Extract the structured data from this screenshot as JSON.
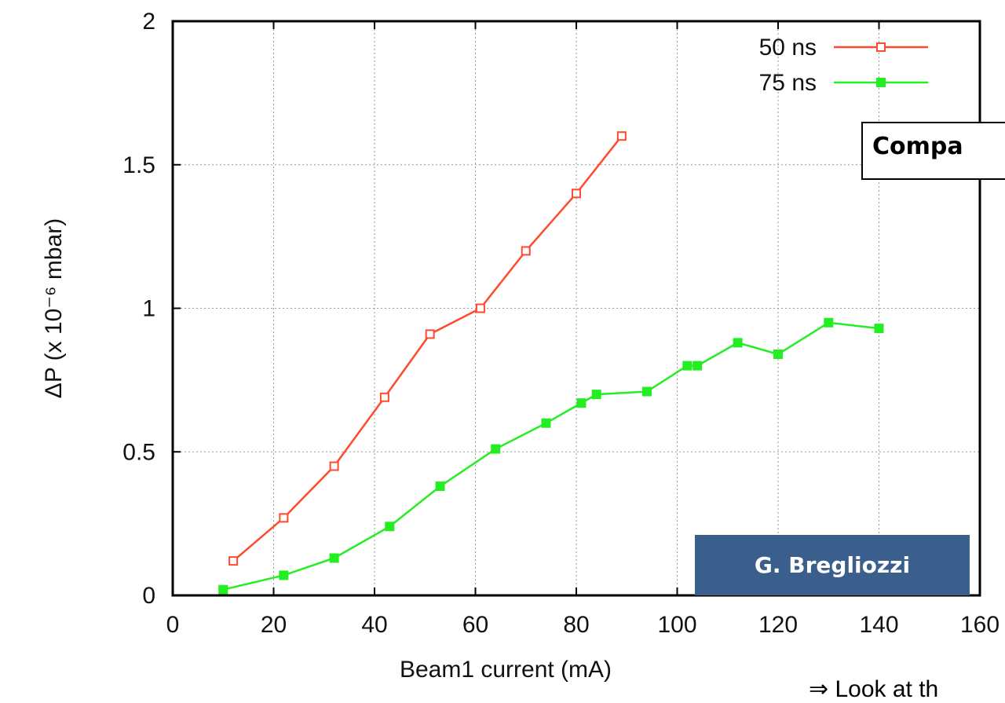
{
  "chart_data": {
    "type": "line",
    "xlabel": "Beam1 current (mA)",
    "ylabel": "ΔP (x 10⁻⁶ mbar)",
    "xlim": [
      0,
      160
    ],
    "ylim": [
      0,
      2
    ],
    "x_ticks": [
      "0",
      "20",
      "40",
      "60",
      "80",
      "100",
      "120",
      "140",
      "160"
    ],
    "y_ticks": [
      "0",
      "0.5",
      "1",
      "1.5",
      "2"
    ],
    "grid": true,
    "legend_position": "top-right",
    "series": [
      {
        "name": "50 ns",
        "color": "#ff4a2e",
        "marker": "open-square",
        "x": [
          12,
          22,
          32,
          42,
          51,
          61,
          70,
          80,
          89
        ],
        "y": [
          0.12,
          0.27,
          0.45,
          0.69,
          0.91,
          1.0,
          1.2,
          1.4,
          1.6
        ]
      },
      {
        "name": "75 ns",
        "color": "#22ee22",
        "marker": "filled-square",
        "x": [
          10,
          22,
          32,
          43,
          53,
          64,
          74,
          81,
          84,
          94,
          102,
          104,
          112,
          120,
          130,
          140
        ],
        "y": [
          0.02,
          0.07,
          0.13,
          0.24,
          0.38,
          0.51,
          0.6,
          0.67,
          0.7,
          0.71,
          0.8,
          0.8,
          0.88,
          0.84,
          0.95,
          0.93
        ]
      }
    ]
  },
  "callout": {
    "text": "Compa"
  },
  "credit": {
    "text": "G. Bregliozzi"
  },
  "footnote": {
    "text": "⇒ Look at th"
  }
}
